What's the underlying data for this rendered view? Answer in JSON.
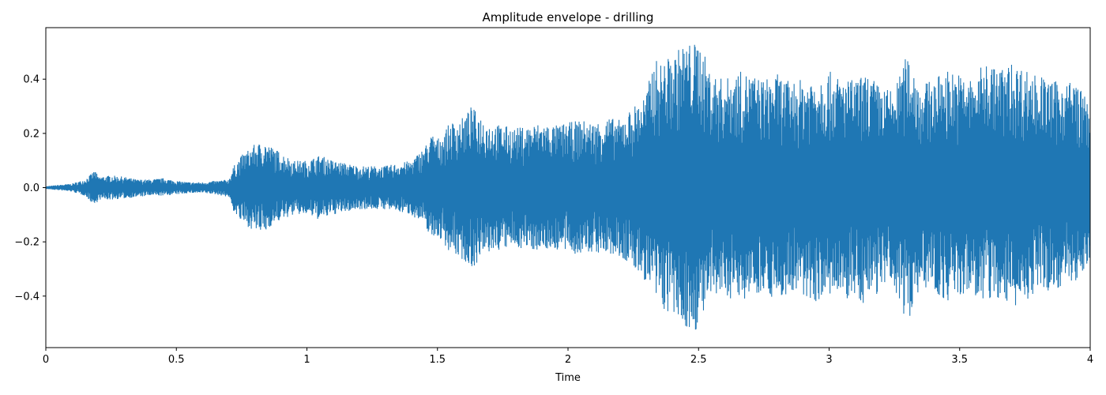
{
  "chart_data": {
    "type": "line",
    "title": "Amplitude envelope - drilling",
    "xlabel": "Time",
    "ylabel": "",
    "xlim": [
      0,
      4
    ],
    "ylim": [
      -0.59,
      0.59
    ],
    "grid": false,
    "legend": "none",
    "line_color": "#1f77b4",
    "x_ticks": [
      0,
      0.5,
      1,
      1.5,
      2,
      2.5,
      3,
      3.5,
      4
    ],
    "x_tick_labels": [
      "0",
      "0.5",
      "1",
      "1.5",
      "2",
      "2.5",
      "3",
      "3.5",
      "4"
    ],
    "y_ticks": [
      -0.4,
      -0.2,
      0.0,
      0.2,
      0.4
    ],
    "y_tick_labels": [
      "−0.4",
      "−0.2",
      "0.0",
      "0.2",
      "0.4"
    ],
    "series": [
      {
        "x": [
          0.0,
          0.05,
          0.1,
          0.15,
          0.19,
          0.2,
          0.25,
          0.3,
          0.35,
          0.4,
          0.45,
          0.5,
          0.55,
          0.6,
          0.65,
          0.7,
          0.72,
          0.75,
          0.8,
          0.84,
          0.85,
          0.9,
          0.95,
          1.0,
          1.05,
          1.1,
          1.15,
          1.2,
          1.25,
          1.3,
          1.35,
          1.4,
          1.45,
          1.48,
          1.5,
          1.55,
          1.6,
          1.63,
          1.65,
          1.7,
          1.75,
          1.8,
          1.85,
          1.9,
          1.95,
          2.0,
          2.05,
          2.1,
          2.15,
          2.2,
          2.25,
          2.3,
          2.33,
          2.35,
          2.4,
          2.45,
          2.48,
          2.5,
          2.55,
          2.6,
          2.65,
          2.7,
          2.75,
          2.8,
          2.85,
          2.9,
          2.95,
          3.0,
          3.05,
          3.1,
          3.15,
          3.2,
          3.25,
          3.3,
          3.35,
          3.4,
          3.45,
          3.5,
          3.55,
          3.6,
          3.65,
          3.7,
          3.75,
          3.8,
          3.85,
          3.9,
          3.95,
          4.0
        ],
        "upper": [
          0.005,
          0.01,
          0.015,
          0.03,
          0.065,
          0.04,
          0.045,
          0.04,
          0.03,
          0.03,
          0.035,
          0.025,
          0.02,
          0.02,
          0.025,
          0.03,
          0.08,
          0.12,
          0.16,
          0.17,
          0.16,
          0.13,
          0.1,
          0.1,
          0.12,
          0.1,
          0.09,
          0.08,
          0.08,
          0.08,
          0.09,
          0.1,
          0.15,
          0.2,
          0.18,
          0.24,
          0.26,
          0.3,
          0.28,
          0.24,
          0.23,
          0.22,
          0.23,
          0.24,
          0.23,
          0.24,
          0.25,
          0.24,
          0.26,
          0.25,
          0.3,
          0.35,
          0.48,
          0.46,
          0.49,
          0.54,
          0.53,
          0.55,
          0.42,
          0.4,
          0.43,
          0.42,
          0.4,
          0.42,
          0.39,
          0.4,
          0.42,
          0.43,
          0.4,
          0.4,
          0.42,
          0.37,
          0.36,
          0.5,
          0.38,
          0.4,
          0.44,
          0.42,
          0.4,
          0.47,
          0.44,
          0.46,
          0.44,
          0.42,
          0.39,
          0.4,
          0.39,
          0.3
        ],
        "lower": [
          -0.005,
          -0.01,
          -0.015,
          -0.03,
          -0.07,
          -0.045,
          -0.045,
          -0.04,
          -0.035,
          -0.03,
          -0.03,
          -0.025,
          -0.02,
          -0.02,
          -0.025,
          -0.035,
          -0.09,
          -0.13,
          -0.16,
          -0.17,
          -0.15,
          -0.12,
          -0.1,
          -0.1,
          -0.12,
          -0.1,
          -0.09,
          -0.08,
          -0.08,
          -0.08,
          -0.09,
          -0.1,
          -0.14,
          -0.19,
          -0.18,
          -0.24,
          -0.27,
          -0.3,
          -0.28,
          -0.24,
          -0.23,
          -0.22,
          -0.23,
          -0.23,
          -0.23,
          -0.24,
          -0.25,
          -0.24,
          -0.25,
          -0.26,
          -0.3,
          -0.35,
          -0.41,
          -0.44,
          -0.48,
          -0.52,
          -0.55,
          -0.5,
          -0.42,
          -0.4,
          -0.42,
          -0.4,
          -0.38,
          -0.42,
          -0.39,
          -0.41,
          -0.42,
          -0.4,
          -0.42,
          -0.41,
          -0.44,
          -0.37,
          -0.38,
          -0.5,
          -0.36,
          -0.39,
          -0.42,
          -0.41,
          -0.39,
          -0.44,
          -0.41,
          -0.45,
          -0.42,
          -0.39,
          -0.38,
          -0.36,
          -0.35,
          -0.28
        ]
      }
    ]
  }
}
